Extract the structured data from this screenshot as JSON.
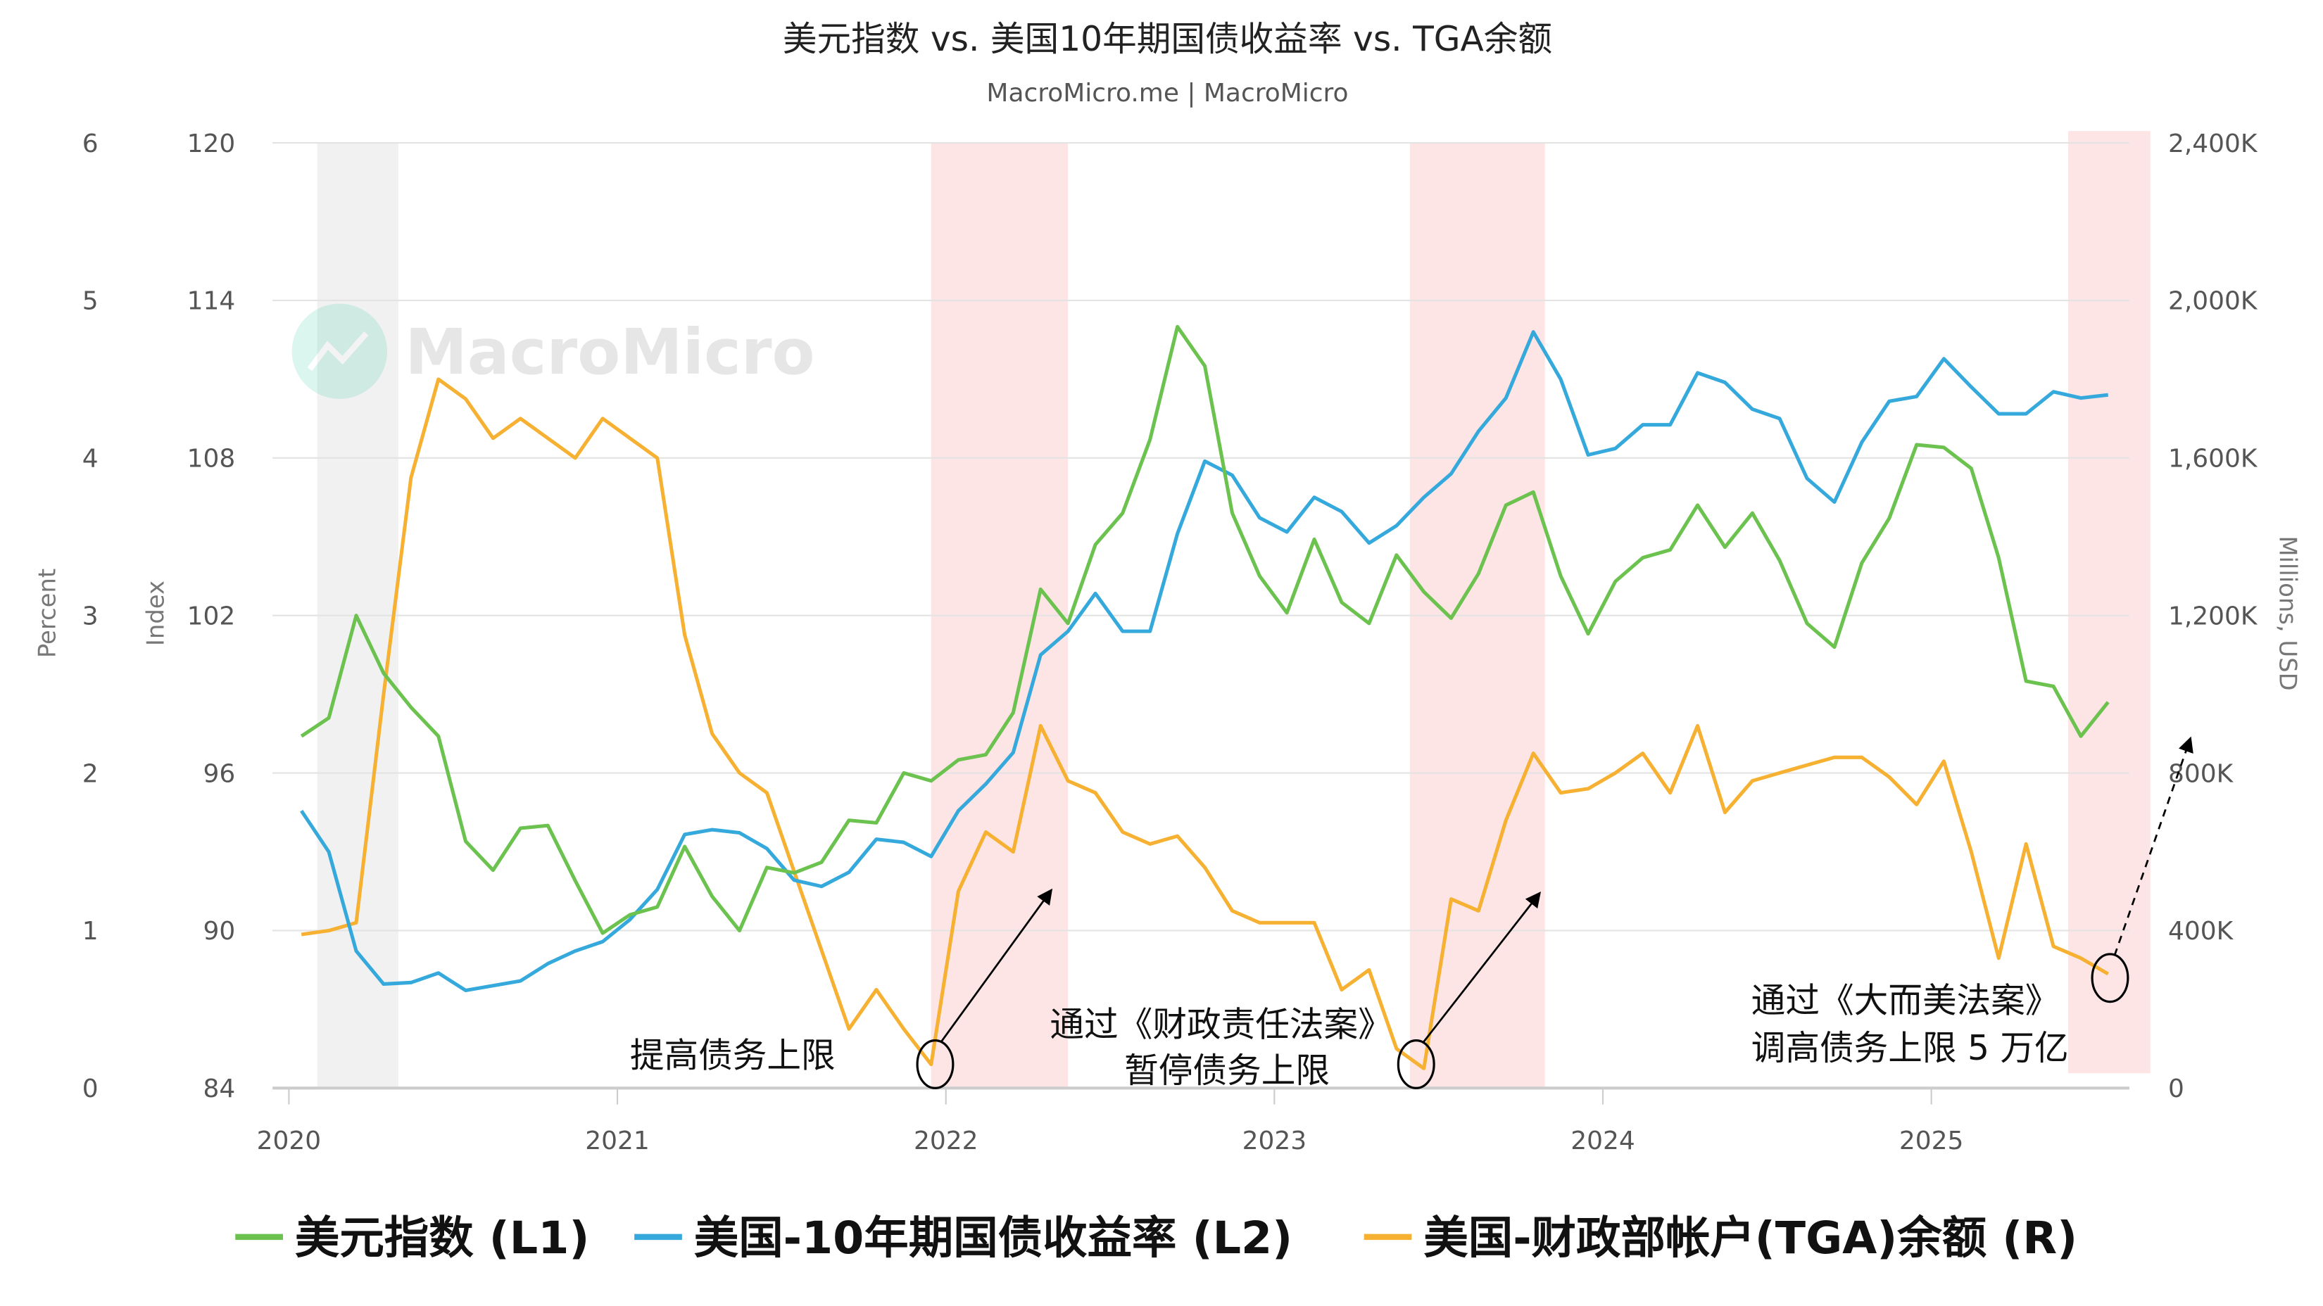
{
  "chart_data": {
    "type": "line",
    "title": "美元指数 vs. 美国10年期国债收益率 vs. TGA余额",
    "subtitle": "MacroMicro.me | MacroMicro",
    "watermark": "MacroMicro",
    "axes": {
      "left_outer": {
        "label": "Percent",
        "range": [
          0,
          6
        ],
        "ticks": [
          "0",
          "1",
          "2",
          "3",
          "4",
          "5",
          "6"
        ]
      },
      "left_inner": {
        "label": "Index",
        "range": [
          84,
          120
        ],
        "ticks": [
          "84",
          "90",
          "96",
          "102",
          "108",
          "114",
          "120"
        ]
      },
      "right": {
        "label": "Millions, USD",
        "range": [
          0,
          2400
        ],
        "ticks": [
          "0",
          "400K",
          "800K",
          "1,200K",
          "1,600K",
          "2,000K",
          "2,400K"
        ]
      },
      "x": {
        "ticks": [
          "2020",
          "2021",
          "2022",
          "2023",
          "2024",
          "2025"
        ]
      }
    },
    "grid": true,
    "legend_position": "bottom",
    "x": [
      "2020-01",
      "2020-02",
      "2020-03",
      "2020-04",
      "2020-05",
      "2020-06",
      "2020-07",
      "2020-08",
      "2020-09",
      "2020-10",
      "2020-11",
      "2020-12",
      "2021-01",
      "2021-02",
      "2021-03",
      "2021-04",
      "2021-05",
      "2021-06",
      "2021-07",
      "2021-08",
      "2021-09",
      "2021-10",
      "2021-11",
      "2021-12",
      "2022-01",
      "2022-02",
      "2022-03",
      "2022-04",
      "2022-05",
      "2022-06",
      "2022-07",
      "2022-08",
      "2022-09",
      "2022-10",
      "2022-11",
      "2022-12",
      "2023-01",
      "2023-02",
      "2023-03",
      "2023-04",
      "2023-05",
      "2023-06",
      "2023-07",
      "2023-08",
      "2023-09",
      "2023-10",
      "2023-11",
      "2023-12",
      "2024-01",
      "2024-02",
      "2024-03",
      "2024-04",
      "2024-05",
      "2024-06",
      "2024-07",
      "2024-08",
      "2024-09",
      "2024-10",
      "2024-11",
      "2024-12",
      "2025-01",
      "2025-02",
      "2025-03",
      "2025-04",
      "2025-05",
      "2025-06",
      "2025-07"
    ],
    "series": [
      {
        "name": "美元指数 (L1)",
        "axis": "left_inner",
        "color": "#6cc24f",
        "values": [
          97.4,
          98.1,
          102.0,
          99.8,
          98.5,
          97.4,
          93.4,
          92.3,
          93.9,
          94.0,
          91.9,
          89.9,
          90.6,
          90.9,
          93.2,
          91.3,
          90.0,
          92.4,
          92.2,
          92.6,
          94.2,
          94.1,
          96.0,
          95.7,
          96.5,
          96.7,
          98.3,
          103.0,
          101.7,
          104.7,
          105.9,
          108.7,
          113.0,
          111.5,
          105.9,
          103.5,
          102.1,
          104.9,
          102.5,
          101.7,
          104.3,
          102.9,
          101.9,
          103.6,
          106.2,
          106.7,
          103.5,
          101.3,
          103.3,
          104.2,
          104.5,
          106.2,
          104.6,
          105.9,
          104.1,
          101.7,
          100.8,
          104.0,
          105.7,
          108.5,
          108.4,
          107.6,
          104.2,
          99.5,
          99.3,
          97.4,
          98.7
        ]
      },
      {
        "name": "美国-10年期国债收益率 (L2)",
        "axis": "left_outer",
        "color": "#36a9dc",
        "values": [
          1.76,
          1.5,
          0.87,
          0.66,
          0.67,
          0.73,
          0.62,
          0.65,
          0.68,
          0.79,
          0.87,
          0.93,
          1.07,
          1.26,
          1.61,
          1.64,
          1.62,
          1.52,
          1.32,
          1.28,
          1.37,
          1.58,
          1.56,
          1.47,
          1.76,
          1.93,
          2.13,
          2.75,
          2.9,
          3.14,
          2.9,
          2.9,
          3.52,
          3.98,
          3.89,
          3.62,
          3.53,
          3.75,
          3.66,
          3.46,
          3.57,
          3.75,
          3.9,
          4.17,
          4.38,
          4.8,
          4.5,
          4.02,
          4.06,
          4.21,
          4.21,
          4.54,
          4.48,
          4.31,
          4.25,
          3.87,
          3.72,
          4.1,
          4.36,
          4.39,
          4.63,
          4.45,
          4.28,
          4.28,
          4.42,
          4.38,
          4.4
        ]
      },
      {
        "name": "美国-财政部帐户(TGA)余额 (R)",
        "axis": "right",
        "color": "#f6b132",
        "values": [
          390,
          400,
          420,
          1000,
          1550,
          1800,
          1750,
          1650,
          1700,
          1650,
          1600,
          1700,
          1650,
          1600,
          1150,
          900,
          800,
          750,
          550,
          350,
          150,
          250,
          150,
          60,
          500,
          650,
          600,
          920,
          780,
          750,
          650,
          620,
          640,
          560,
          450,
          420,
          420,
          420,
          250,
          300,
          100,
          50,
          480,
          450,
          680,
          850,
          750,
          760,
          800,
          850,
          750,
          920,
          700,
          780,
          800,
          820,
          840,
          840,
          790,
          720,
          830,
          600,
          330,
          620,
          360,
          330,
          290
        ]
      }
    ],
    "shaded_periods": [
      {
        "start": "2020-02-02",
        "end": "2020-05-01",
        "color": "#f1f1f1"
      },
      {
        "start": "2021-12-15",
        "end": "2022-05-15",
        "color": "#fde5e5"
      },
      {
        "start": "2023-05-30",
        "end": "2023-10-28",
        "color": "#fde5e5"
      },
      {
        "start": "2025-06-01",
        "end": "2025-09-01",
        "color": "#fde5e5"
      }
    ],
    "annotations": [
      {
        "lines": [
          "提高债务上限"
        ]
      },
      {
        "lines": [
          "通过《财政责任法案》",
          "暂停债务上限"
        ]
      },
      {
        "lines": [
          "通过《大而美法案》",
          "调高债务上限 5 万亿"
        ]
      }
    ]
  }
}
